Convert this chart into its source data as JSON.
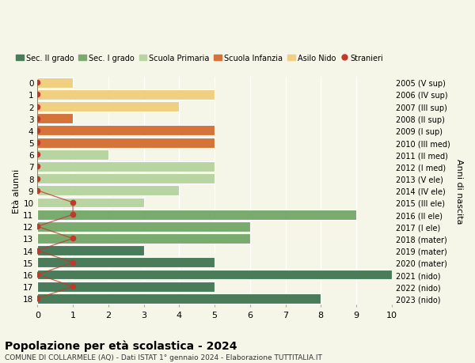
{
  "ages": [
    18,
    17,
    16,
    15,
    14,
    13,
    12,
    11,
    10,
    9,
    8,
    7,
    6,
    5,
    4,
    3,
    2,
    1,
    0
  ],
  "years_labels": [
    "2005 (V sup)",
    "2006 (IV sup)",
    "2007 (III sup)",
    "2008 (II sup)",
    "2009 (I sup)",
    "2010 (III med)",
    "2011 (II med)",
    "2012 (I med)",
    "2013 (V ele)",
    "2014 (IV ele)",
    "2015 (III ele)",
    "2016 (II ele)",
    "2017 (I ele)",
    "2018 (mater)",
    "2019 (mater)",
    "2020 (mater)",
    "2021 (nido)",
    "2022 (nido)",
    "2023 (nido)"
  ],
  "bar_values": [
    8,
    5,
    10,
    5,
    3,
    6,
    6,
    9,
    3,
    4,
    5,
    5,
    2,
    5,
    5,
    1,
    4,
    5,
    1
  ],
  "bar_colors": [
    "#4a7c59",
    "#4a7c59",
    "#4a7c59",
    "#4a7c59",
    "#4a7c59",
    "#7aab6e",
    "#7aab6e",
    "#7aab6e",
    "#b8d4a0",
    "#b8d4a0",
    "#b8d4a0",
    "#b8d4a0",
    "#b8d4a0",
    "#d4733a",
    "#d4733a",
    "#d4733a",
    "#f0d080",
    "#f0d080",
    "#f0d080"
  ],
  "stranieri_x": [
    0,
    1,
    0,
    1,
    0,
    1,
    0,
    1,
    1,
    0,
    0,
    0,
    0,
    0,
    0,
    0,
    0,
    0,
    0
  ],
  "red": "#c0392b",
  "title": "Popolazione per età scolastica - 2024",
  "subtitle": "COMUNE DI COLLARMELE (AQ) - Dati ISTAT 1° gennaio 2024 - Elaborazione TUTTITALIA.IT",
  "ylabel_left": "Età alunni",
  "ylabel_right": "Anni di nascita",
  "legend_labels": [
    "Sec. II grado",
    "Sec. I grado",
    "Scuola Primaria",
    "Scuola Infanzia",
    "Asilo Nido",
    "Stranieri"
  ],
  "legend_colors": [
    "#4a7c59",
    "#7aab6e",
    "#b8d4a0",
    "#d4733a",
    "#f0d080",
    "#c0392b"
  ],
  "xlim": [
    0,
    10
  ],
  "background_color": "#f5f5e8",
  "grid_color": "#ffffff",
  "bar_height": 0.85
}
